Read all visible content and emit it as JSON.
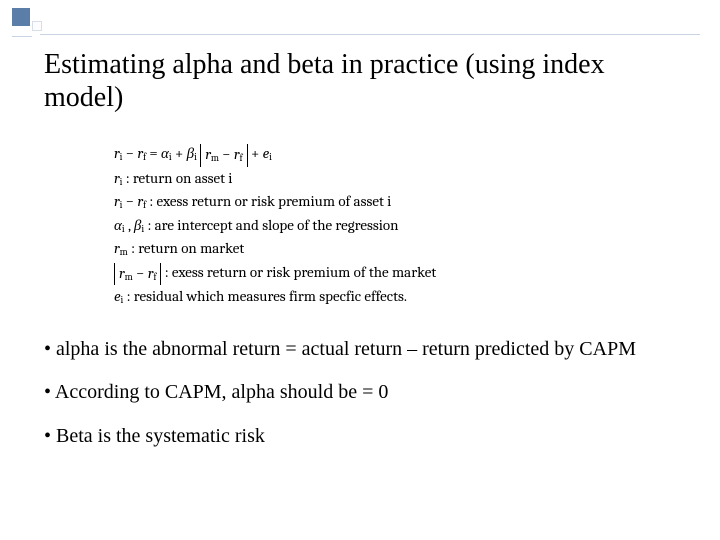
{
  "decoration": {
    "accent_color": "#5b7ea8",
    "outline_color": "#d8dee8",
    "rule_color": "#c9d3e2"
  },
  "title": "Estimating alpha and beta in practice (using index model)",
  "math": {
    "eq_lhs": "r",
    "eq_lhs_sub": "i",
    "eq_minus": " − ",
    "eq_rf": "r",
    "eq_rf_sub": "f",
    "eq_eq": " = ",
    "eq_alpha": "α",
    "eq_alpha_sub": "i",
    "eq_plus1": " + ",
    "eq_beta": "β",
    "eq_beta_sub": "i",
    "eq_br_l": "r",
    "eq_br_l_sub": "m",
    "eq_br_minus": " − ",
    "eq_br_r": "r",
    "eq_br_r_sub": "f",
    "eq_plus2": " + ",
    "eq_e": "e",
    "eq_e_sub": "i",
    "d1_sym": "r",
    "d1_sub": "i",
    "d1_txt": " : return on asset i",
    "d2_sym1": "r",
    "d2_sub1": "i",
    "d2_minus": " − ",
    "d2_sym2": "r",
    "d2_sub2": "f",
    "d2_txt": " : exess return or risk premium of asset i",
    "d3_a": "α",
    "d3_a_sub": "i",
    "d3_comma": " , ",
    "d3_b": "β",
    "d3_b_sub": "i",
    "d3_txt": " : are intercept and slope of the regression",
    "d4_sym": "r",
    "d4_sub": "m",
    "d4_txt": " : return on market",
    "d5_br_l": "r",
    "d5_br_l_sub": "m",
    "d5_br_minus": " − ",
    "d5_br_r": "r",
    "d5_br_r_sub": "f",
    "d5_txt": " : exess return or risk premium of the market",
    "d6_sym": "e",
    "d6_sub": "i",
    "d6_txt": " : residual which measures firm specfic effects."
  },
  "bullets": {
    "b1": "• alpha is the abnormal return = actual return – return predicted by CAPM",
    "b2": "• According to CAPM, alpha should be = 0",
    "b3": "• Beta is the systematic risk"
  }
}
